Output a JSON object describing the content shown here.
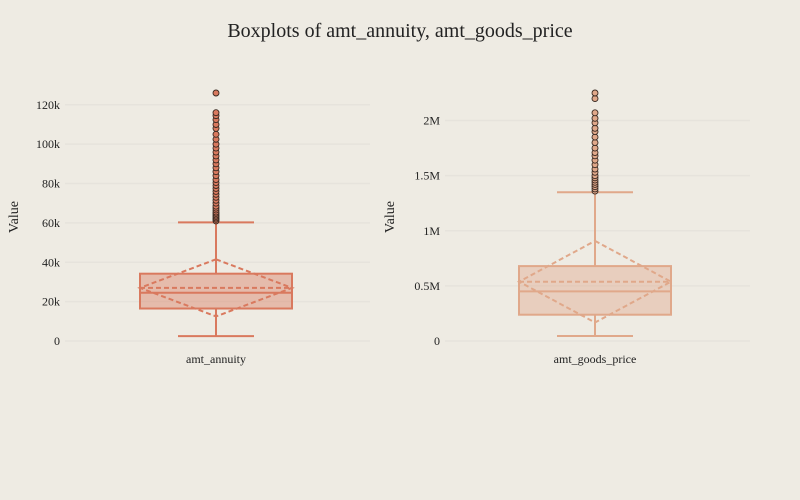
{
  "chart_data": {
    "title": "Boxplots of amt_annuity, amt_goods_price",
    "type": "box",
    "grid": true,
    "legend": "none",
    "panels": [
      {
        "category": "amt_annuity",
        "ylabel": "Value",
        "ylim": [
          0,
          126000
        ],
        "yticks": [
          0,
          20000,
          40000,
          60000,
          80000,
          100000,
          120000
        ],
        "ytick_labels": [
          "0",
          "20k",
          "40k",
          "60k",
          "80k",
          "100k",
          "120k"
        ],
        "color": "#d9795e",
        "box": {
          "whisker_low": 2500,
          "q1": 16500,
          "median": 24500,
          "q3": 34200,
          "whisker_high": 60300,
          "mean": 27000,
          "sd": 14500
        },
        "outliers": [
          61000,
          61800,
          62500,
          63300,
          64000,
          64800,
          65500,
          66500,
          67500,
          68500,
          70000,
          71500,
          73000,
          74500,
          76000,
          77500,
          79000,
          80500,
          82000,
          84000,
          86000,
          88000,
          90000,
          92000,
          94000,
          96000,
          98000,
          100000,
          102500,
          105000,
          108000,
          110000,
          112500,
          114500,
          116000,
          126000
        ]
      },
      {
        "category": "amt_goods_price",
        "ylabel": "Value",
        "ylim": [
          0,
          2250000
        ],
        "yticks": [
          0,
          500000,
          1000000,
          1500000,
          2000000
        ],
        "ytick_labels": [
          "0",
          "0.5M",
          "1M",
          "1.5M",
          "2M"
        ],
        "color": "#e0a88a",
        "box": {
          "whisker_low": 45000,
          "q1": 238500,
          "median": 450000,
          "q3": 679500,
          "whisker_high": 1350000,
          "mean": 538000,
          "sd": 370000
        },
        "outliers": [
          1360000,
          1380000,
          1400000,
          1420000,
          1440000,
          1460000,
          1480000,
          1500000,
          1530000,
          1560000,
          1600000,
          1640000,
          1680000,
          1710000,
          1750000,
          1800000,
          1850000,
          1900000,
          1930000,
          1980000,
          2020000,
          2070000,
          2200000,
          2250000
        ]
      }
    ]
  }
}
